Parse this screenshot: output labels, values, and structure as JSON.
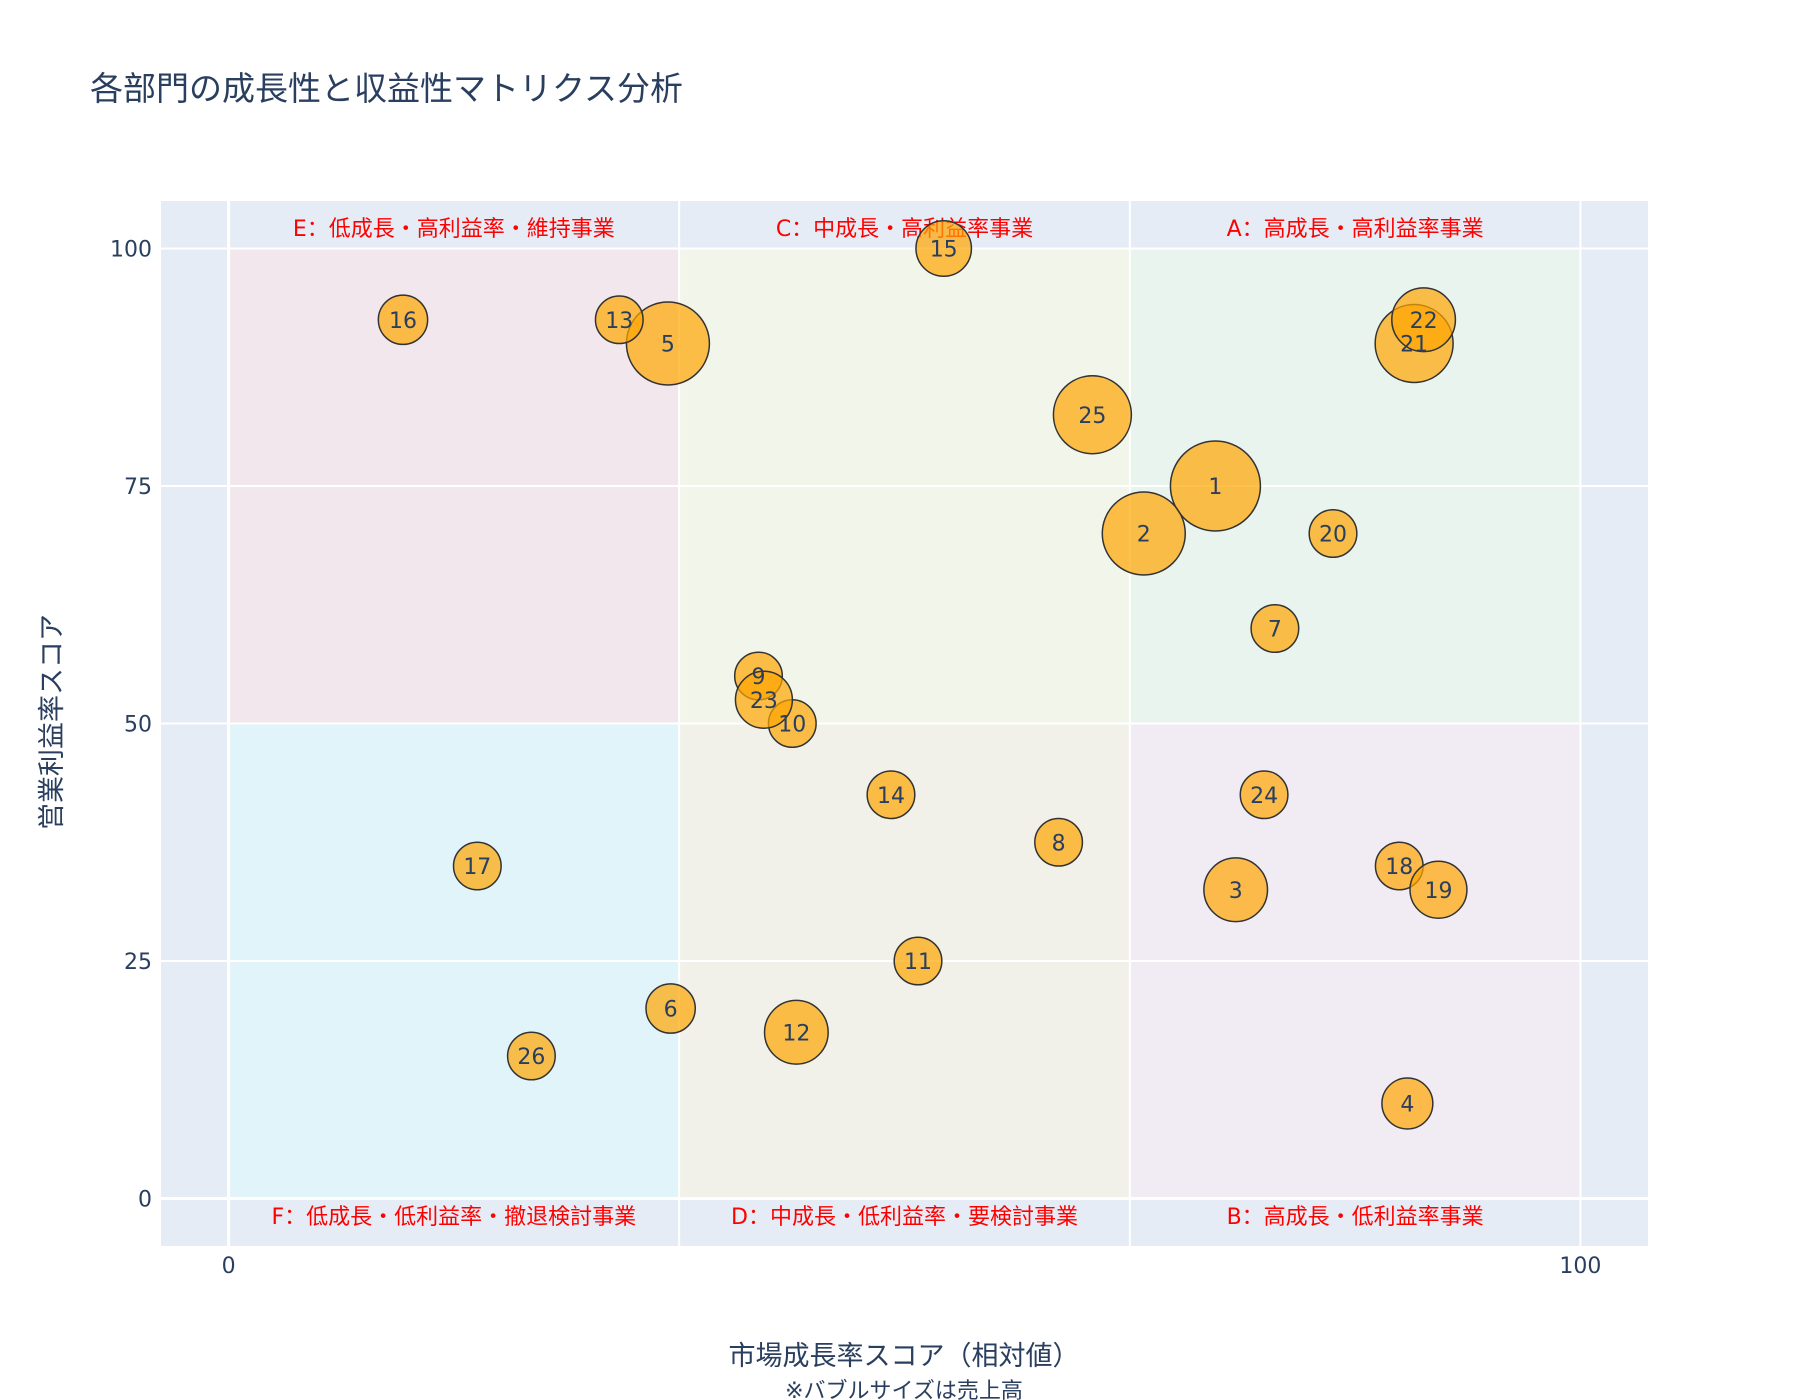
{
  "chart_data": {
    "type": "scatter",
    "title": "各部門の成長性と収益性マトリクス分析",
    "xlabel": "市場成長率スコア（相対値）",
    "xnote": "※バブルサイズは売上高",
    "ylabel": "営業利益率スコア",
    "xlim": [
      -5,
      105
    ],
    "ylim": [
      -5,
      105
    ],
    "x_ticks": [
      0,
      100
    ],
    "y_ticks": [
      0,
      25,
      50,
      75,
      100
    ],
    "grid": true,
    "colors": {
      "plot_bg": "#e5ecf6",
      "grid": "#ffffff",
      "bubble_fill": "#ffa500",
      "bubble_stroke": "#333333",
      "text": "#2a3f5f",
      "zone_label": "#ff0000"
    },
    "zones": [
      {
        "label": "A：高成長・高利益率事業",
        "x": [
          66.67,
          100
        ],
        "y": [
          50,
          100
        ],
        "color": "#eaf4ee",
        "label_pos": "top"
      },
      {
        "label": "B：高成長・低利益率事業",
        "x": [
          66.67,
          100
        ],
        "y": [
          0,
          50
        ],
        "color": "#f1ebf4",
        "label_pos": "bottom"
      },
      {
        "label": "C：中成長・高利益率事業",
        "x": [
          33.33,
          66.67
        ],
        "y": [
          50,
          100
        ],
        "color": "#f1f5ea",
        "label_pos": "top"
      },
      {
        "label": "D：中成長・低利益率・要検討事業",
        "x": [
          33.33,
          66.67
        ],
        "y": [
          0,
          50
        ],
        "color": "#f1f1e9",
        "label_pos": "bottom"
      },
      {
        "label": "E：低成長・高利益率・維持事業",
        "x": [
          0,
          33.33
        ],
        "y": [
          50,
          100
        ],
        "color": "#f1e7ec",
        "label_pos": "top"
      },
      {
        "label": "F：低成長・低利益率・撤退検討事業",
        "x": [
          0,
          33.33
        ],
        "y": [
          0,
          50
        ],
        "color": "#e1f4fa",
        "label_pos": "bottom"
      }
    ],
    "points": [
      {
        "label": "1",
        "x": 73,
        "y": 75,
        "size": 100
      },
      {
        "label": "2",
        "x": 67.7,
        "y": 70,
        "size": 85
      },
      {
        "label": "3",
        "x": 74.5,
        "y": 32.5,
        "size": 50
      },
      {
        "label": "4",
        "x": 87.2,
        "y": 10,
        "size": 32
      },
      {
        "label": "5",
        "x": 32.5,
        "y": 90,
        "size": 85
      },
      {
        "label": "6",
        "x": 32.7,
        "y": 20,
        "size": 30
      },
      {
        "label": "7",
        "x": 77.4,
        "y": 60,
        "size": 28
      },
      {
        "label": "8",
        "x": 61.4,
        "y": 37.5,
        "size": 28
      },
      {
        "label": "9",
        "x": 39.2,
        "y": 55,
        "size": 28
      },
      {
        "label": "10",
        "x": 41.7,
        "y": 50,
        "size": 28
      },
      {
        "label": "11",
        "x": 51,
        "y": 25,
        "size": 28
      },
      {
        "label": "12",
        "x": 42,
        "y": 17.5,
        "size": 50
      },
      {
        "label": "13",
        "x": 28.9,
        "y": 92.5,
        "size": 28
      },
      {
        "label": "14",
        "x": 49,
        "y": 42.5,
        "size": 28
      },
      {
        "label": "15",
        "x": 52.9,
        "y": 100,
        "size": 38
      },
      {
        "label": "16",
        "x": 12.9,
        "y": 92.5,
        "size": 30
      },
      {
        "label": "17",
        "x": 18.4,
        "y": 35,
        "size": 28
      },
      {
        "label": "18",
        "x": 86.6,
        "y": 35,
        "size": 28
      },
      {
        "label": "19",
        "x": 89.5,
        "y": 32.5,
        "size": 40
      },
      {
        "label": "20",
        "x": 81.7,
        "y": 70,
        "size": 28
      },
      {
        "label": "21",
        "x": 87.7,
        "y": 90,
        "size": 75
      },
      {
        "label": "22",
        "x": 88.4,
        "y": 92.5,
        "size": 50
      },
      {
        "label": "23",
        "x": 39.6,
        "y": 52.5,
        "size": 40
      },
      {
        "label": "24",
        "x": 76.6,
        "y": 42.5,
        "size": 28
      },
      {
        "label": "25",
        "x": 63.9,
        "y": 82.5,
        "size": 75
      },
      {
        "label": "26",
        "x": 22.4,
        "y": 15,
        "size": 28
      }
    ]
  }
}
